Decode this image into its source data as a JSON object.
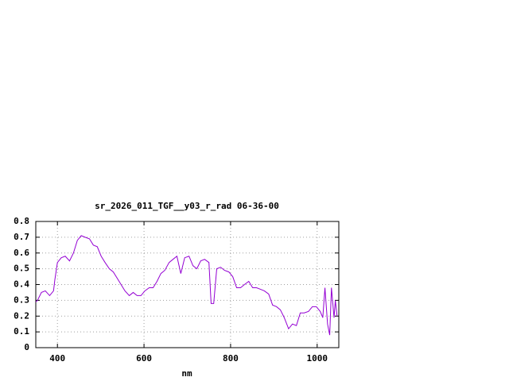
{
  "chart_data": {
    "type": "line",
    "title": "sr_2026_011_TGF__y03_r_rad 06-36-00",
    "x_label": "nm",
    "x": [
      350,
      354,
      363,
      372,
      382,
      391,
      394,
      400,
      409,
      418,
      428,
      437,
      446,
      455,
      464,
      474,
      483,
      492,
      501,
      510,
      520,
      529,
      538,
      547,
      556,
      566,
      575,
      584,
      593,
      602,
      612,
      621,
      630,
      639,
      648,
      658,
      667,
      676,
      685,
      694,
      704,
      713,
      722,
      731,
      740,
      750,
      755,
      761,
      768,
      777,
      786,
      796,
      805,
      814,
      823,
      832,
      842,
      851,
      860,
      869,
      878,
      888,
      897,
      906,
      915,
      924,
      934,
      943,
      952,
      961,
      970,
      980,
      989,
      998,
      1007,
      1013,
      1018,
      1024,
      1029,
      1033,
      1039,
      1042,
      1046
    ],
    "series": [
      {
        "color": "#9400d3",
        "values": [
          0.29,
          0.3,
          0.35,
          0.36,
          0.33,
          0.36,
          0.43,
          0.54,
          0.57,
          0.58,
          0.55,
          0.6,
          0.68,
          0.71,
          0.7,
          0.69,
          0.65,
          0.64,
          0.58,
          0.54,
          0.5,
          0.48,
          0.44,
          0.4,
          0.36,
          0.33,
          0.35,
          0.33,
          0.33,
          0.36,
          0.38,
          0.38,
          0.42,
          0.47,
          0.49,
          0.54,
          0.56,
          0.58,
          0.47,
          0.57,
          0.58,
          0.52,
          0.5,
          0.55,
          0.56,
          0.54,
          0.28,
          0.28,
          0.5,
          0.51,
          0.49,
          0.48,
          0.45,
          0.38,
          0.38,
          0.4,
          0.42,
          0.38,
          0.38,
          0.37,
          0.36,
          0.34,
          0.27,
          0.26,
          0.24,
          0.19,
          0.12,
          0.15,
          0.14,
          0.22,
          0.22,
          0.23,
          0.26,
          0.26,
          0.23,
          0.19,
          0.38,
          0.15,
          0.08,
          0.38,
          0.19,
          0.3,
          0.2
        ]
      }
    ],
    "xlim": [
      350,
      1050
    ],
    "xticks": [
      400,
      600,
      800,
      1000
    ],
    "ylim": [
      0,
      0.8
    ],
    "yticks": [
      0,
      0.1,
      0.2,
      0.3,
      0.4,
      0.5,
      0.6,
      0.7,
      0.8
    ],
    "grid": true
  }
}
